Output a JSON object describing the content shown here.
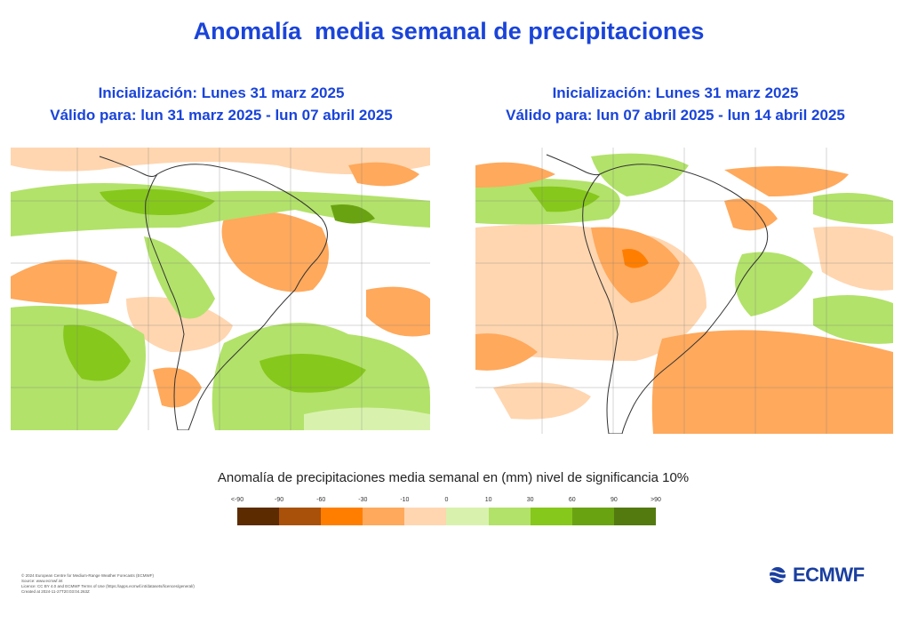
{
  "title": "Anomalía  media semanal de precipitaciones",
  "colors": {
    "title": "#1a44d9",
    "logo": "#1a3fa0",
    "ocean_base": "#ffffff",
    "land_outline": "#333333"
  },
  "panels": [
    {
      "init_line": "Inicialización: Lunes 31 marz 2025",
      "valid_line": "Válido para: lun 31 marz 2025 - lun 07 abril 2025",
      "dominant_anomaly": "positive"
    },
    {
      "init_line": "Inicialización: Lunes 31 marz 2025",
      "valid_line": "Válido para: lun 07 abril 2025 - lun 14 abril 2025",
      "dominant_anomaly": "negative"
    }
  ],
  "legend": {
    "title": "Anomalía de precipitaciones media semanal en (mm) nivel de significancia 10%",
    "labels": [
      "<-90",
      "-90",
      "-60",
      "-30",
      "-10",
      "0",
      "10",
      "30",
      "60",
      "90",
      ">90"
    ],
    "colors": [
      "#5c2c00",
      "#a9510a",
      "#ff7e00",
      "#ffa95c",
      "#ffd6b0",
      "#d8f2ae",
      "#b2e26a",
      "#86c81c",
      "#6aa312",
      "#537a0f"
    ]
  },
  "footer": [
    "© 2024 European Centre for Medium-Range Weather Forecasts (ECMWF)",
    "Source: www.ecmwf.int",
    "Licence: CC BY 4.0 and ECMWF Terms of Use (https://apps.ecmwf.int/datasets/licences/general/)",
    "Created at 2024-11-27T20:03:04.263Z"
  ],
  "logo": {
    "text": "ECMWF",
    "icon": "ecmwf-logo-icon"
  }
}
